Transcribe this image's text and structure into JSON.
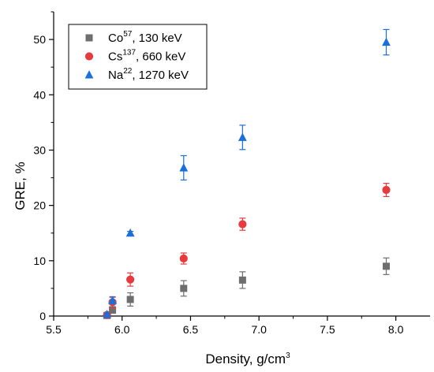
{
  "chart_data": {
    "type": "scatter",
    "xlabel": "Density, g/cm",
    "xlabel_sup": "3",
    "ylabel": "GRE, %",
    "xlim": [
      5.5,
      8.25
    ],
    "ylim": [
      0,
      55
    ],
    "xticks": [
      5.5,
      6.0,
      6.5,
      7.0,
      7.5,
      8.0
    ],
    "xtick_labels": [
      "5.5",
      "6.0",
      "6.5",
      "7.0",
      "7.5",
      "8.0"
    ],
    "yticks": [
      0,
      10,
      20,
      30,
      40,
      50
    ],
    "ytick_labels": [
      "0",
      "10",
      "20",
      "30",
      "40",
      "50"
    ],
    "grid": false,
    "legend_position": "top-left",
    "series": [
      {
        "name": "Co",
        "name_sup": "57",
        "name_suffix": ", 130 keV",
        "marker": "square",
        "color": "#6e6e6e",
        "x": [
          5.89,
          5.93,
          6.06,
          6.45,
          6.88,
          7.93
        ],
        "y": [
          0.1,
          1.1,
          3.0,
          5.0,
          6.5,
          9.0
        ],
        "err": [
          0.2,
          0.6,
          1.2,
          1.4,
          1.5,
          1.5
        ]
      },
      {
        "name": "Cs",
        "name_sup": "137",
        "name_suffix": ", 660 keV",
        "marker": "circle",
        "color": "#e8393e",
        "x": [
          5.89,
          5.93,
          6.06,
          6.45,
          6.88,
          7.93
        ],
        "y": [
          0.2,
          2.5,
          6.6,
          10.4,
          16.6,
          22.8
        ],
        "err": [
          0.2,
          1.0,
          1.2,
          1.0,
          1.1,
          1.2
        ]
      },
      {
        "name": "Na",
        "name_sup": "22",
        "name_suffix": ", 1270 keV",
        "marker": "triangle",
        "color": "#1a6fd9",
        "x": [
          5.89,
          5.93,
          6.06,
          6.45,
          6.88,
          7.93
        ],
        "y": [
          0.3,
          2.8,
          15.0,
          26.8,
          32.3,
          49.5
        ],
        "err": [
          0.2,
          0.6,
          0.3,
          2.2,
          2.2,
          2.3
        ]
      }
    ]
  }
}
